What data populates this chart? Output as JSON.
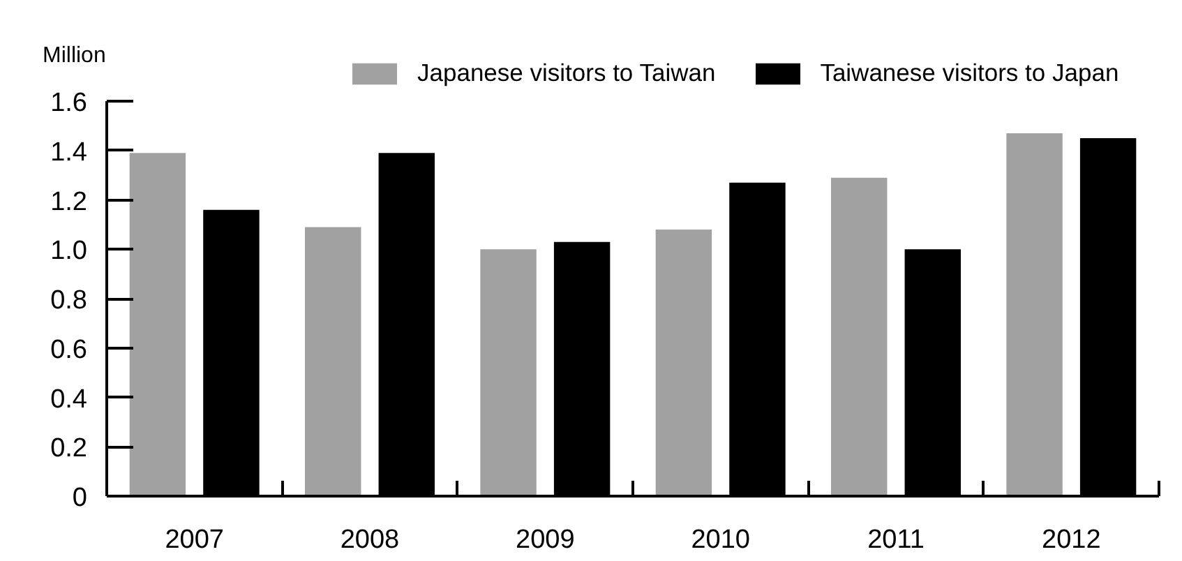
{
  "chart_data": {
    "type": "bar",
    "categories": [
      "2007",
      "2008",
      "2009",
      "2010",
      "2011",
      "2012"
    ],
    "series": [
      {
        "name": "Japanese visitors to Taiwan",
        "color": "#a0a1a0",
        "values": [
          1.39,
          1.09,
          1.0,
          1.08,
          1.29,
          1.47
        ]
      },
      {
        "name": "Taiwanese visitors to Japan",
        "color": "#000000",
        "values": [
          1.16,
          1.39,
          1.03,
          1.27,
          1.0,
          1.45
        ]
      }
    ],
    "ylabel": "Million",
    "ylim": [
      0,
      1.6
    ],
    "yticks": [
      0,
      0.2,
      0.4,
      0.6,
      0.8,
      {
        "value": 1,
        "label": "1.0"
      },
      1.2,
      1.4,
      1.6
    ],
    "legend": "top"
  }
}
